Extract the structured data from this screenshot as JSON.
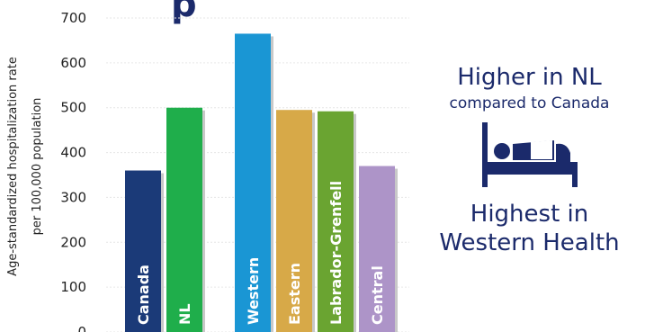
{
  "title_fragment": "p",
  "chart_data": {
    "type": "bar",
    "ylabel": "Age-standardized hospitalization rate\nper 100,000 population",
    "ylabel_lines": [
      "Age-standardized hospitalization rate",
      "per 100,000 population"
    ],
    "ylim": [
      0,
      700
    ],
    "yticks": [
      "0",
      "100",
      "200",
      "300",
      "400",
      "500",
      "600",
      "700"
    ],
    "grid": true,
    "categories": [
      "Canada",
      "NL",
      "Western",
      "Eastern",
      "Labrador-Grenfell",
      "Central"
    ],
    "values": [
      360,
      500,
      665,
      495,
      492,
      370
    ],
    "colors": [
      "#1b3a78",
      "#1fae4b",
      "#1a96d4",
      "#d7a948",
      "#6aa431",
      "#ad94c8"
    ]
  },
  "side_panel": {
    "line1_big": "Higher in NL",
    "line1_small": "compared to Canada",
    "icon": "hospital-bed-icon",
    "line2_big_a": "Highest in",
    "line2_big_b": "Western Health",
    "color": "#1b2a6b"
  }
}
